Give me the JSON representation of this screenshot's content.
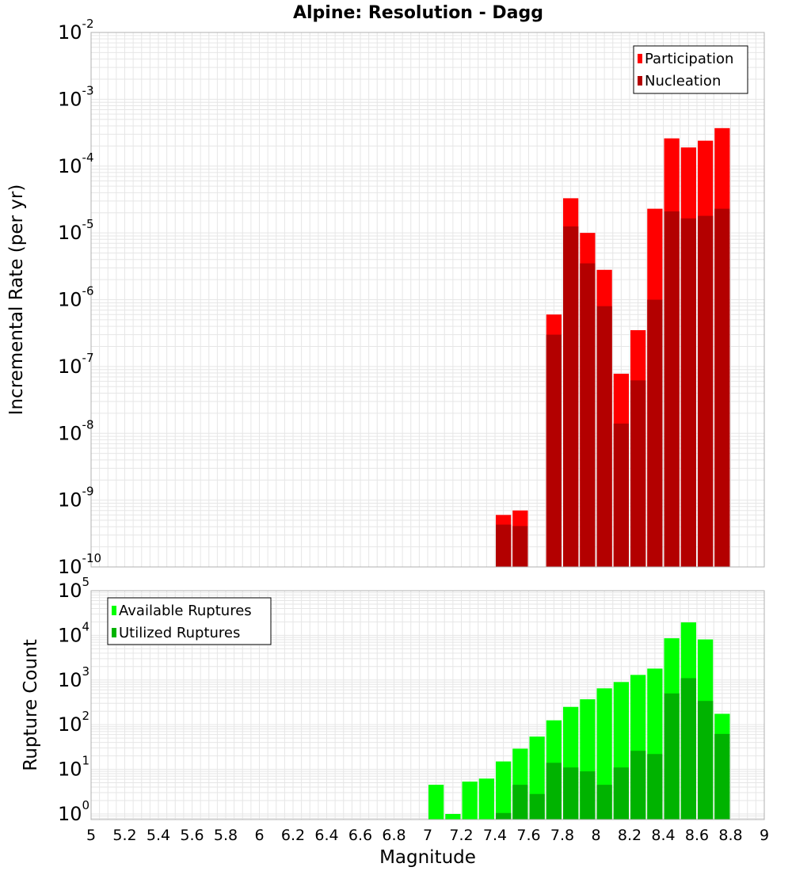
{
  "title": "Alpine: Resolution - Dagg",
  "colors": {
    "participation": "#ff0000",
    "nucleation": "#b30000",
    "available": "#00ff00",
    "utilized": "#00b300",
    "grid": "#e6e6e6",
    "frame": "#b0b0b0"
  },
  "chart_data": [
    {
      "type": "bar",
      "scale": "log",
      "ylabel": "Incremental Rate (per yr)",
      "xlabel": "",
      "ylim": [
        1e-10,
        0.01
      ],
      "xlim": [
        5,
        9
      ],
      "y_ticks": [
        {
          "base": "10",
          "exp": "-10",
          "value": 1e-10
        },
        {
          "base": "10",
          "exp": "-9",
          "value": 1e-09
        },
        {
          "base": "10",
          "exp": "-8",
          "value": 1e-08
        },
        {
          "base": "10",
          "exp": "-7",
          "value": 1e-07
        },
        {
          "base": "10",
          "exp": "-6",
          "value": 1e-06
        },
        {
          "base": "10",
          "exp": "-5",
          "value": 1e-05
        },
        {
          "base": "10",
          "exp": "-4",
          "value": 0.0001
        },
        {
          "base": "10",
          "exp": "-3",
          "value": 0.001
        },
        {
          "base": "10",
          "exp": "-2",
          "value": 0.01
        }
      ],
      "legend": "top-right",
      "grid": true,
      "series": [
        {
          "name": "Participation",
          "color_key": "participation",
          "points": [
            {
              "x": 7.45,
              "y": 6e-10
            },
            {
              "x": 7.55,
              "y": 7e-10
            },
            {
              "x": 7.75,
              "y": 6e-07
            },
            {
              "x": 7.85,
              "y": 3.3e-05
            },
            {
              "x": 7.95,
              "y": 1e-05
            },
            {
              "x": 8.05,
              "y": 2.8e-06
            },
            {
              "x": 8.15,
              "y": 7.8e-08
            },
            {
              "x": 8.25,
              "y": 3.5e-07
            },
            {
              "x": 8.35,
              "y": 2.3e-05
            },
            {
              "x": 8.45,
              "y": 0.00026
            },
            {
              "x": 8.55,
              "y": 0.00019
            },
            {
              "x": 8.65,
              "y": 0.00024
            },
            {
              "x": 8.75,
              "y": 0.00037
            }
          ]
        },
        {
          "name": "Nucleation",
          "color_key": "nucleation",
          "points": [
            {
              "x": 7.45,
              "y": 4.3e-10
            },
            {
              "x": 7.55,
              "y": 4.1e-10
            },
            {
              "x": 7.75,
              "y": 3e-07
            },
            {
              "x": 7.85,
              "y": 1.25e-05
            },
            {
              "x": 7.95,
              "y": 3.5e-06
            },
            {
              "x": 8.05,
              "y": 8e-07
            },
            {
              "x": 8.15,
              "y": 1.4e-08
            },
            {
              "x": 8.25,
              "y": 6.2e-08
            },
            {
              "x": 8.35,
              "y": 1e-06
            },
            {
              "x": 8.45,
              "y": 2.1e-05
            },
            {
              "x": 8.55,
              "y": 1.65e-05
            },
            {
              "x": 8.65,
              "y": 1.8e-05
            },
            {
              "x": 8.75,
              "y": 2.3e-05
            }
          ]
        }
      ]
    },
    {
      "type": "bar",
      "scale": "log",
      "ylabel": "Rupture Count",
      "xlabel": "Magnitude",
      "ylim": [
        0.75,
        100000.0
      ],
      "xlim": [
        5,
        9
      ],
      "y_ticks": [
        {
          "base": "10",
          "exp": "0",
          "value": 1
        },
        {
          "base": "10",
          "exp": "1",
          "value": 10
        },
        {
          "base": "10",
          "exp": "2",
          "value": 100
        },
        {
          "base": "10",
          "exp": "3",
          "value": 1000
        },
        {
          "base": "10",
          "exp": "4",
          "value": 10000
        },
        {
          "base": "10",
          "exp": "5",
          "value": 100000
        }
      ],
      "x_ticks": [
        "5",
        "5.2",
        "5.4",
        "5.6",
        "5.8",
        "6",
        "6.2",
        "6.4",
        "6.6",
        "6.8",
        "7",
        "7.2",
        "7.4",
        "7.6",
        "7.8",
        "8",
        "8.2",
        "8.4",
        "8.6",
        "8.8",
        "9"
      ],
      "legend": "top-left",
      "grid": true,
      "series": [
        {
          "name": "Available Ruptures",
          "color_key": "available",
          "points": [
            {
              "x": 7.05,
              "y": 4.5
            },
            {
              "x": 7.15,
              "y": 1
            },
            {
              "x": 7.25,
              "y": 5.3
            },
            {
              "x": 7.35,
              "y": 6.2
            },
            {
              "x": 7.45,
              "y": 15
            },
            {
              "x": 7.55,
              "y": 29
            },
            {
              "x": 7.65,
              "y": 54
            },
            {
              "x": 7.75,
              "y": 125
            },
            {
              "x": 7.85,
              "y": 250
            },
            {
              "x": 7.95,
              "y": 370
            },
            {
              "x": 8.05,
              "y": 650
            },
            {
              "x": 8.15,
              "y": 900
            },
            {
              "x": 8.25,
              "y": 1300
            },
            {
              "x": 8.35,
              "y": 1800
            },
            {
              "x": 8.45,
              "y": 8600
            },
            {
              "x": 8.55,
              "y": 19500
            },
            {
              "x": 8.65,
              "y": 8100
            },
            {
              "x": 8.75,
              "y": 175
            }
          ]
        },
        {
          "name": "Utilized Ruptures",
          "color_key": "utilized",
          "points": [
            {
              "x": 7.45,
              "y": 1.05
            },
            {
              "x": 7.55,
              "y": 4.5
            },
            {
              "x": 7.65,
              "y": 2.8
            },
            {
              "x": 7.75,
              "y": 14
            },
            {
              "x": 7.85,
              "y": 11
            },
            {
              "x": 7.95,
              "y": 9
            },
            {
              "x": 8.05,
              "y": 4.5
            },
            {
              "x": 8.15,
              "y": 11
            },
            {
              "x": 8.25,
              "y": 26
            },
            {
              "x": 8.35,
              "y": 22
            },
            {
              "x": 8.45,
              "y": 500
            },
            {
              "x": 8.55,
              "y": 1100
            },
            {
              "x": 8.65,
              "y": 340
            },
            {
              "x": 8.75,
              "y": 62
            }
          ]
        }
      ]
    }
  ]
}
